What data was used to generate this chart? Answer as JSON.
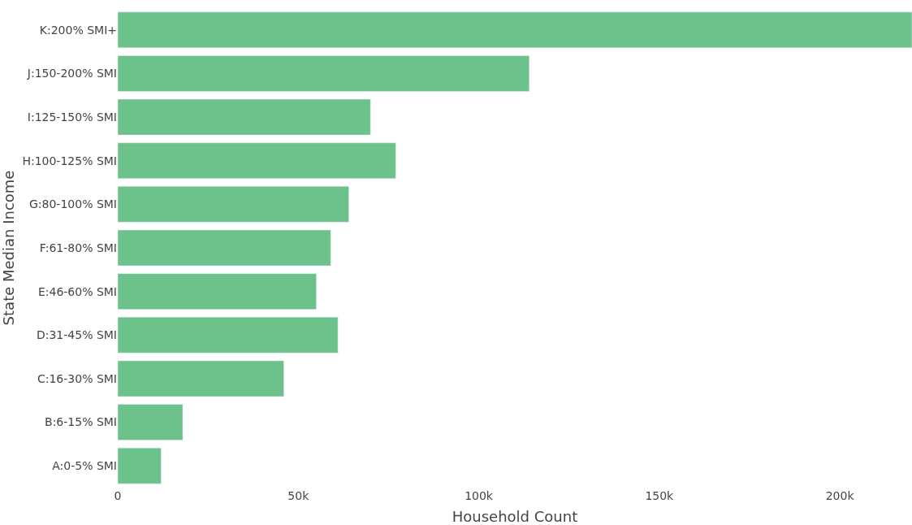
{
  "chart_data": {
    "type": "bar",
    "orientation": "horizontal",
    "xlabel": "Household Count",
    "ylabel": "State Median Income",
    "categories": [
      "K:200% SMI+",
      "J:150-200% SMI",
      "I:125-150% SMI",
      "H:100-125% SMI",
      "G:80-100% SMI",
      "F:61-80% SMI",
      "E:46-60% SMI",
      "D:31-45% SMI",
      "C:16-30% SMI",
      "B:6-15% SMI",
      "A:0-5% SMI"
    ],
    "values": [
      220000,
      114000,
      70000,
      77000,
      64000,
      59000,
      55000,
      61000,
      46000,
      18000,
      12000
    ],
    "color": "#6cc28a",
    "xlim": [
      0,
      220000
    ],
    "xticks": [
      0,
      {
        "value": 50000,
        "label": "50k"
      },
      {
        "value": 100000,
        "label": "100k"
      },
      {
        "value": 150000,
        "label": "150k"
      },
      {
        "value": 200000,
        "label": "200k"
      }
    ]
  }
}
